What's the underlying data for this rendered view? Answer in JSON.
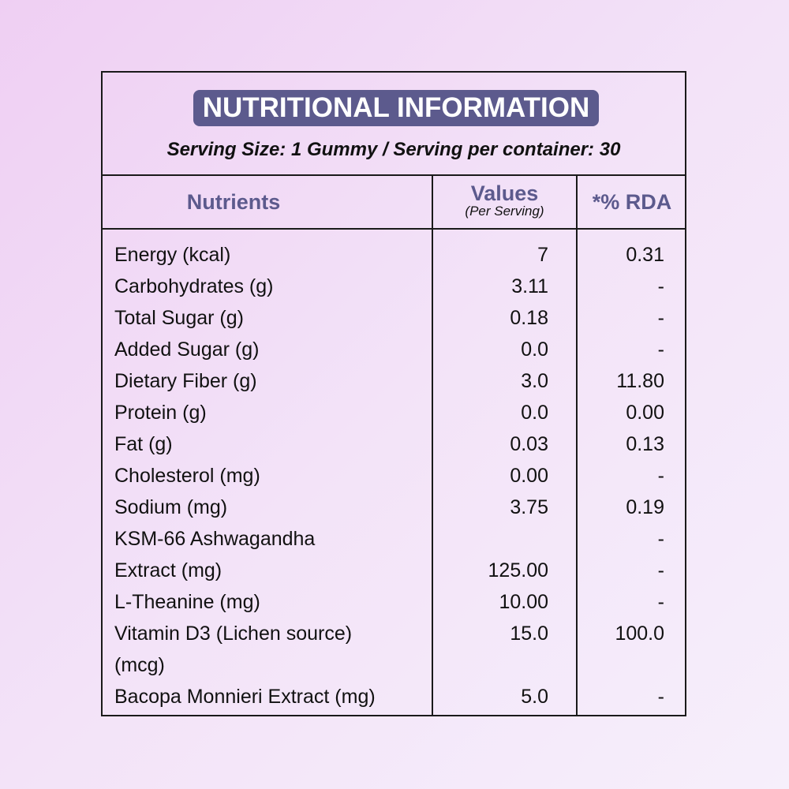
{
  "header": {
    "title": "NUTRITIONAL INFORMATION",
    "serving": "Serving Size: 1 Gummy / Serving per container: 30"
  },
  "table": {
    "columns": {
      "nutrients": "Nutrients",
      "values": "Values",
      "values_sub": "(Per Serving)",
      "rda": "*% RDA"
    },
    "rows": [
      {
        "name": "Energy (kcal)",
        "value": "7",
        "rda": "0.31"
      },
      {
        "name": "Carbohydrates (g)",
        "value": "3.11",
        "rda": "-"
      },
      {
        "name": "Total Sugar (g)",
        "value": "0.18",
        "rda": "-"
      },
      {
        "name": "Added Sugar (g)",
        "value": "0.0",
        "rda": "-"
      },
      {
        "name": "Dietary Fiber (g)",
        "value": "3.0",
        "rda": "11.80"
      },
      {
        "name": "Protein (g)",
        "value": "0.0",
        "rda": "0.00"
      },
      {
        "name": "Fat (g)",
        "value": "0.03",
        "rda": "0.13"
      },
      {
        "name": "Cholesterol (mg)",
        "value": "0.00",
        "rda": "-"
      },
      {
        "name": "Sodium (mg)",
        "value": "3.75",
        "rda": "0.19"
      },
      {
        "name": "KSM-66 Ashwagandha",
        "value": "",
        "rda": "-"
      },
      {
        "name": "Extract (mg)",
        "value": "125.00",
        "rda": "-"
      },
      {
        "name": "L-Theanine (mg)",
        "value": "10.00",
        "rda": "-"
      },
      {
        "name": "Vitamin D3 (Lichen source) (mcg)",
        "value": "15.0",
        "rda": "100.0"
      },
      {
        "name": "Bacopa Monnieri Extract (mg)",
        "value": "5.0",
        "rda": "-"
      }
    ]
  }
}
